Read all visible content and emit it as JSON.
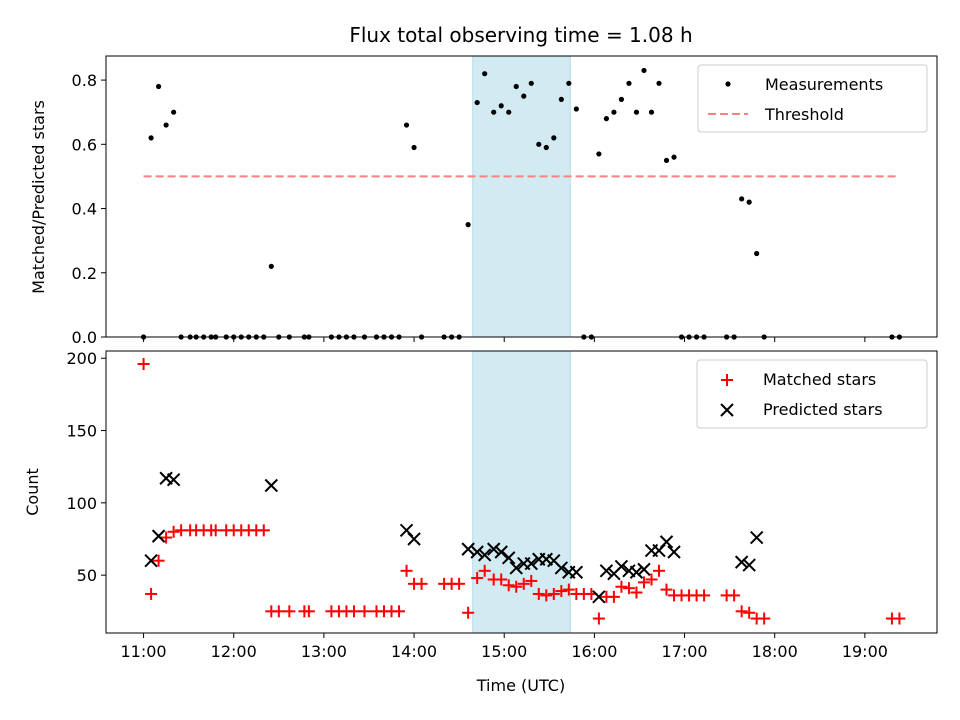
{
  "chart_data": [
    {
      "type": "scatter",
      "title": "Flux total observing time = 1.08 h",
      "xlabel": "",
      "ylabel": "Matched/Predicted stars",
      "ylim": [
        0,
        0.875
      ],
      "xlim": [
        "10:35",
        "19:48"
      ],
      "yticks": [
        "0.0",
        "0.2",
        "0.4",
        "0.6",
        "0.8"
      ],
      "legend_position": "top-right",
      "highlight_band": {
        "start": "14:39",
        "end": "15:44",
        "color": "#add8e6"
      },
      "series": [
        {
          "name": "Measurements",
          "color": "#000000",
          "marker": "dot",
          "points": [
            [
              "11:00",
              0.0
            ],
            [
              "11:05",
              0.62
            ],
            [
              "11:10",
              0.78
            ],
            [
              "11:15",
              0.66
            ],
            [
              "11:20",
              0.7
            ],
            [
              "11:25",
              0.0
            ],
            [
              "11:31",
              0.0
            ],
            [
              "11:35",
              0.0
            ],
            [
              "11:40",
              0.0
            ],
            [
              "11:45",
              0.0
            ],
            [
              "11:48",
              0.0
            ],
            [
              "11:55",
              0.0
            ],
            [
              "12:00",
              0.0
            ],
            [
              "12:05",
              0.0
            ],
            [
              "12:10",
              0.0
            ],
            [
              "12:15",
              0.0
            ],
            [
              "12:20",
              0.0
            ],
            [
              "12:25",
              0.22
            ],
            [
              "12:30",
              0.0
            ],
            [
              "12:37",
              0.0
            ],
            [
              "12:47",
              0.0
            ],
            [
              "12:50",
              0.0
            ],
            [
              "13:05",
              0.0
            ],
            [
              "13:10",
              0.0
            ],
            [
              "13:15",
              0.0
            ],
            [
              "13:20",
              0.0
            ],
            [
              "13:27",
              0.0
            ],
            [
              "13:35",
              0.0
            ],
            [
              "13:40",
              0.0
            ],
            [
              "13:45",
              0.0
            ],
            [
              "13:50",
              0.0
            ],
            [
              "13:55",
              0.66
            ],
            [
              "14:00",
              0.59
            ],
            [
              "14:05",
              0.0
            ],
            [
              "14:20",
              0.0
            ],
            [
              "14:25",
              0.0
            ],
            [
              "14:30",
              0.0
            ],
            [
              "14:36",
              0.35
            ],
            [
              "14:42",
              0.73
            ],
            [
              "14:47",
              0.82
            ],
            [
              "14:53",
              0.7
            ],
            [
              "14:58",
              0.72
            ],
            [
              "15:03",
              0.7
            ],
            [
              "15:08",
              0.78
            ],
            [
              "15:13",
              0.75
            ],
            [
              "15:18",
              0.79
            ],
            [
              "15:23",
              0.6
            ],
            [
              "15:28",
              0.59
            ],
            [
              "15:33",
              0.62
            ],
            [
              "15:38",
              0.74
            ],
            [
              "15:43",
              0.79
            ],
            [
              "15:48",
              0.71
            ],
            [
              "15:53",
              0.0
            ],
            [
              "15:58",
              0.0
            ],
            [
              "16:03",
              0.57
            ],
            [
              "16:08",
              0.68
            ],
            [
              "16:13",
              0.7
            ],
            [
              "16:18",
              0.74
            ],
            [
              "16:23",
              0.79
            ],
            [
              "16:28",
              0.7
            ],
            [
              "16:33",
              0.83
            ],
            [
              "16:38",
              0.7
            ],
            [
              "16:43",
              0.79
            ],
            [
              "16:48",
              0.55
            ],
            [
              "16:53",
              0.56
            ],
            [
              "16:58",
              0.0
            ],
            [
              "17:03",
              0.0
            ],
            [
              "17:08",
              0.0
            ],
            [
              "17:13",
              0.0
            ],
            [
              "17:28",
              0.0
            ],
            [
              "17:33",
              0.0
            ],
            [
              "17:38",
              0.43
            ],
            [
              "17:43",
              0.42
            ],
            [
              "17:48",
              0.26
            ],
            [
              "17:53",
              0.0
            ],
            [
              "19:18",
              0.0
            ],
            [
              "19:23",
              0.0
            ]
          ]
        },
        {
          "name": "Threshold",
          "color": "#ff7f7f",
          "style": "dashed",
          "points": [
            [
              "11:00",
              0.5
            ],
            [
              "19:23",
              0.5
            ]
          ]
        }
      ]
    },
    {
      "type": "scatter",
      "title": "",
      "xlabel": "Time (UTC)",
      "ylabel": "Count",
      "ylim": [
        10,
        205
      ],
      "xlim": [
        "10:35",
        "19:48"
      ],
      "yticks": [
        "50",
        "100",
        "150",
        "200"
      ],
      "xticks": [
        "11:00",
        "12:00",
        "13:00",
        "14:00",
        "15:00",
        "16:00",
        "17:00",
        "18:00",
        "19:00"
      ],
      "legend_position": "top-right",
      "highlight_band": {
        "start": "14:39",
        "end": "15:44",
        "color": "#add8e6"
      },
      "series": [
        {
          "name": "Matched stars",
          "color": "#ff0000",
          "marker": "plus",
          "points": [
            [
              "11:00",
              196
            ],
            [
              "11:05",
              37
            ],
            [
              "11:10",
              60
            ],
            [
              "11:15",
              76
            ],
            [
              "11:20",
              80
            ],
            [
              "11:25",
              81
            ],
            [
              "11:31",
              81
            ],
            [
              "11:35",
              81
            ],
            [
              "11:40",
              81
            ],
            [
              "11:45",
              81
            ],
            [
              "11:48",
              81
            ],
            [
              "11:55",
              81
            ],
            [
              "12:00",
              81
            ],
            [
              "12:05",
              81
            ],
            [
              "12:10",
              81
            ],
            [
              "12:15",
              81
            ],
            [
              "12:20",
              81
            ],
            [
              "12:25",
              25
            ],
            [
              "12:30",
              25
            ],
            [
              "12:37",
              25
            ],
            [
              "12:47",
              25
            ],
            [
              "12:50",
              25
            ],
            [
              "13:05",
              25
            ],
            [
              "13:10",
              25
            ],
            [
              "13:15",
              25
            ],
            [
              "13:20",
              25
            ],
            [
              "13:27",
              25
            ],
            [
              "13:35",
              25
            ],
            [
              "13:40",
              25
            ],
            [
              "13:45",
              25
            ],
            [
              "13:50",
              25
            ],
            [
              "13:55",
              53
            ],
            [
              "14:00",
              44
            ],
            [
              "14:05",
              44
            ],
            [
              "14:20",
              44
            ],
            [
              "14:25",
              44
            ],
            [
              "14:30",
              44
            ],
            [
              "14:36",
              24
            ],
            [
              "14:42",
              48
            ],
            [
              "14:47",
              53
            ],
            [
              "14:53",
              47
            ],
            [
              "14:58",
              47
            ],
            [
              "15:03",
              43
            ],
            [
              "15:08",
              42
            ],
            [
              "15:13",
              44
            ],
            [
              "15:18",
              46
            ],
            [
              "15:23",
              37
            ],
            [
              "15:28",
              36
            ],
            [
              "15:33",
              37
            ],
            [
              "15:38",
              39
            ],
            [
              "15:43",
              40
            ],
            [
              "15:48",
              37
            ],
            [
              "15:53",
              37
            ],
            [
              "15:58",
              37
            ],
            [
              "16:03",
              20
            ],
            [
              "16:08",
              35
            ],
            [
              "16:13",
              35
            ],
            [
              "16:18",
              42
            ],
            [
              "16:23",
              41
            ],
            [
              "16:28",
              38
            ],
            [
              "16:33",
              45
            ],
            [
              "16:38",
              47
            ],
            [
              "16:43",
              53
            ],
            [
              "16:48",
              40
            ],
            [
              "16:53",
              36
            ],
            [
              "16:58",
              36
            ],
            [
              "17:03",
              36
            ],
            [
              "17:08",
              36
            ],
            [
              "17:13",
              36
            ],
            [
              "17:28",
              36
            ],
            [
              "17:33",
              36
            ],
            [
              "17:38",
              25
            ],
            [
              "17:43",
              24
            ],
            [
              "17:48",
              20
            ],
            [
              "17:53",
              20
            ],
            [
              "19:18",
              20
            ],
            [
              "19:23",
              20
            ]
          ]
        },
        {
          "name": "Predicted stars",
          "color": "#000000",
          "marker": "x",
          "points": [
            [
              "11:05",
              60
            ],
            [
              "11:10",
              77
            ],
            [
              "11:15",
              117
            ],
            [
              "11:20",
              116
            ],
            [
              "12:25",
              112
            ],
            [
              "13:55",
              81
            ],
            [
              "14:00",
              75
            ],
            [
              "14:36",
              68
            ],
            [
              "14:42",
              66
            ],
            [
              "14:47",
              64
            ],
            [
              "14:53",
              68
            ],
            [
              "14:58",
              66
            ],
            [
              "15:03",
              62
            ],
            [
              "15:08",
              55
            ],
            [
              "15:13",
              58
            ],
            [
              "15:18",
              58
            ],
            [
              "15:23",
              61
            ],
            [
              "15:28",
              61
            ],
            [
              "15:33",
              60
            ],
            [
              "15:38",
              55
            ],
            [
              "15:43",
              52
            ],
            [
              "15:48",
              52
            ],
            [
              "16:03",
              35
            ],
            [
              "16:08",
              53
            ],
            [
              "16:13",
              51
            ],
            [
              "16:18",
              56
            ],
            [
              "16:23",
              53
            ],
            [
              "16:28",
              52
            ],
            [
              "16:33",
              54
            ],
            [
              "16:38",
              67
            ],
            [
              "16:43",
              67
            ],
            [
              "16:48",
              73
            ],
            [
              "16:53",
              66
            ],
            [
              "17:38",
              59
            ],
            [
              "17:43",
              57
            ],
            [
              "17:48",
              76
            ]
          ]
        }
      ]
    }
  ]
}
